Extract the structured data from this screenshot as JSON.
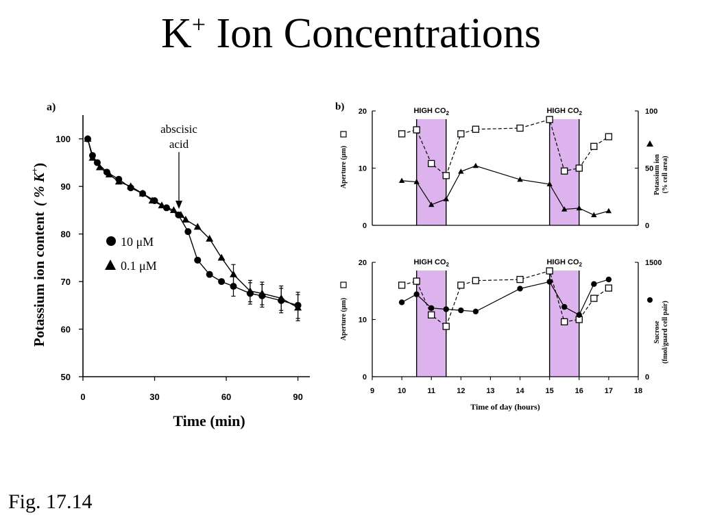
{
  "slide": {
    "title_main": "K",
    "title_sup": "+",
    "title_rest": " Ion Concentrations",
    "caption": "Fig. 17.14"
  },
  "colors": {
    "shade": "#ddb3ee",
    "ink": "#000000"
  },
  "chart_data": [
    {
      "type": "line",
      "panel_label": "a)",
      "xlabel": "Time (min)",
      "ylabel": "Potassium ion content",
      "ylabel_paren": "( % K",
      "ylabel_sup": "+",
      "ylabel_close": ")",
      "xlim": [
        0,
        95
      ],
      "ylim": [
        50,
        105
      ],
      "xticks": [
        0,
        30,
        60,
        90
      ],
      "yticks": [
        50,
        60,
        70,
        80,
        90,
        100
      ],
      "annotation": {
        "line1": "abscisic",
        "line2": "acid",
        "x": 40
      },
      "legend": [
        {
          "text": "10 μM",
          "marker": "circle"
        },
        {
          "text": "0.1 μM",
          "marker": "triangle"
        }
      ],
      "series": [
        {
          "name": "10 μM",
          "marker": "circle",
          "points": [
            [
              2,
              100
            ],
            [
              4,
              96.5
            ],
            [
              6,
              95
            ],
            [
              10,
              93
            ],
            [
              15,
              91.5
            ],
            [
              20,
              89.7
            ],
            [
              25,
              88.5
            ],
            [
              30,
              87
            ],
            [
              35,
              85.5
            ],
            [
              40,
              84
            ],
            [
              44,
              80.5
            ],
            [
              48,
              74.5
            ],
            [
              53,
              71.5
            ],
            [
              58,
              70
            ],
            [
              63,
              69
            ],
            [
              70,
              67.5
            ],
            [
              75,
              67
            ],
            [
              83,
              66
            ],
            [
              90,
              65
            ]
          ]
        },
        {
          "name": "0.1 μM",
          "marker": "triangle",
          "points": [
            [
              2,
              100
            ],
            [
              4,
              96
            ],
            [
              7,
              94
            ],
            [
              11,
              92.5
            ],
            [
              15,
              91
            ],
            [
              20,
              90
            ],
            [
              25,
              88.5
            ],
            [
              29,
              87
            ],
            [
              33,
              86
            ],
            [
              38,
              85
            ],
            [
              41,
              84
            ],
            [
              43,
              83
            ],
            [
              48,
              81.5
            ],
            [
              53,
              79
            ],
            [
              58,
              75
            ],
            [
              63,
              71.5
            ],
            [
              70,
              68
            ],
            [
              75,
              67.5
            ],
            [
              83,
              66.5
            ],
            [
              90,
              64.5
            ]
          ]
        }
      ]
    },
    {
      "type": "line",
      "panel_label": "b)",
      "xlim": [
        9,
        18
      ],
      "ylim_left": [
        0,
        20
      ],
      "ylim_right": [
        0,
        100
      ],
      "yticks_left": [
        0,
        10,
        20
      ],
      "yticks_right": [
        0,
        50,
        100
      ],
      "ylabel_left": "Aperture (μm)",
      "ylabel_right": "Potassium ion",
      "ylabel_right_2": "(% cell area)",
      "shaded_label": "HIGH CO",
      "shaded_label_sub": "2",
      "shaded_ranges": [
        [
          10.5,
          11.5
        ],
        [
          15,
          16
        ]
      ],
      "series": [
        {
          "name": "Aperture",
          "marker": "square-open",
          "dash": true,
          "axis": "left",
          "points": [
            [
              10,
              16
            ],
            [
              10.5,
              16.7
            ],
            [
              11,
              10.8
            ],
            [
              11.5,
              8.7
            ],
            [
              12,
              16
            ],
            [
              12.5,
              16.8
            ],
            [
              14,
              17
            ],
            [
              15,
              18.5
            ],
            [
              15.5,
              9.5
            ],
            [
              16,
              10
            ],
            [
              16.5,
              13.8
            ],
            [
              17,
              15.5
            ]
          ]
        },
        {
          "name": "Potassium ion",
          "marker": "triangle",
          "dash": false,
          "axis": "right",
          "points": [
            [
              10,
              39
            ],
            [
              10.5,
              38
            ],
            [
              11,
              18
            ],
            [
              11.5,
              23
            ],
            [
              12,
              47
            ],
            [
              12.5,
              52
            ],
            [
              14,
              40
            ],
            [
              15,
              36
            ],
            [
              15.5,
              14
            ],
            [
              16,
              15
            ],
            [
              16.5,
              9
            ],
            [
              17,
              12.5
            ]
          ]
        }
      ]
    },
    {
      "type": "line",
      "xlabel": "Time of day (hours)",
      "xlim": [
        9,
        18
      ],
      "xticks": [
        9,
        10,
        11,
        12,
        13,
        14,
        15,
        16,
        17,
        18
      ],
      "ylim_left": [
        0,
        20
      ],
      "ylim_right": [
        0,
        1500
      ],
      "yticks_left": [
        0,
        10,
        20
      ],
      "yticks_right": [
        0,
        1500
      ],
      "ylabel_left": "Aperture (μm)",
      "ylabel_right": "Sucrose",
      "ylabel_right_2": "(fmol/guard cell pair)",
      "shaded_label": "HIGH CO",
      "shaded_label_sub": "2",
      "shaded_ranges": [
        [
          10.5,
          11.5
        ],
        [
          15,
          16
        ]
      ],
      "series": [
        {
          "name": "Aperture",
          "marker": "square-open",
          "dash": true,
          "axis": "left",
          "points": [
            [
              10,
              16
            ],
            [
              10.5,
              16.7
            ],
            [
              11,
              10.8
            ],
            [
              11.5,
              8.8
            ],
            [
              12,
              16
            ],
            [
              12.5,
              16.8
            ],
            [
              14,
              17
            ],
            [
              15,
              18.5
            ],
            [
              15.5,
              9.6
            ],
            [
              16,
              10
            ],
            [
              16.5,
              13.7
            ],
            [
              17,
              15.5
            ]
          ]
        },
        {
          "name": "Sucrose",
          "marker": "circle",
          "dash": false,
          "axis": "right",
          "points": [
            [
              10,
              975
            ],
            [
              10.5,
              1080
            ],
            [
              11,
              900
            ],
            [
              11.5,
              885
            ],
            [
              12,
              870
            ],
            [
              12.5,
              855
            ],
            [
              14,
              1155
            ],
            [
              15,
              1245
            ],
            [
              15.5,
              915
            ],
            [
              16,
              810
            ],
            [
              16.5,
              1215
            ],
            [
              17,
              1275
            ]
          ]
        }
      ]
    }
  ]
}
